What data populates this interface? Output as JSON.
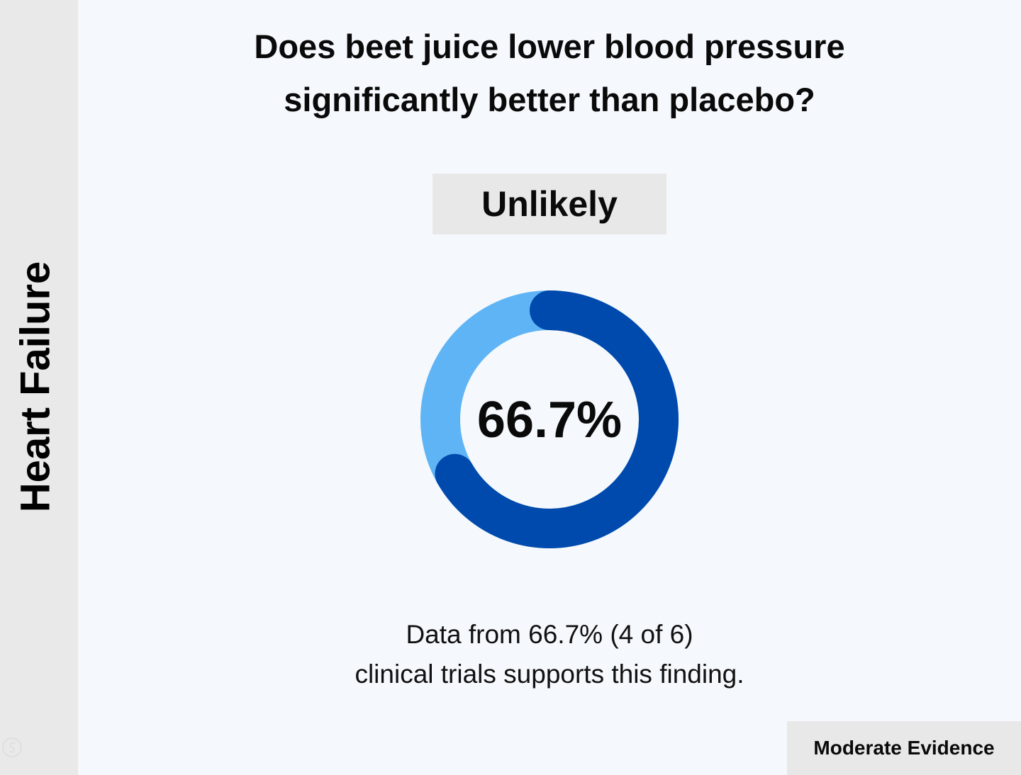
{
  "sidebar": {
    "label": "Heart Failure"
  },
  "question": {
    "line1": "Does beet juice lower blood pressure",
    "line2": "significantly better than placebo?"
  },
  "verdict": "Unlikely",
  "chart_data": {
    "type": "pie",
    "style": "donut",
    "center_label": "66.7%",
    "slices": [
      {
        "value": 66.7,
        "color": "#004aad"
      },
      {
        "value": 33.3,
        "color": "#5fb4f5"
      }
    ]
  },
  "caption": {
    "line1": "Data from 66.7% (4 of 6)",
    "line2": "clinical trials supports this finding."
  },
  "evidence_badge": "Moderate Evidence",
  "colors": {
    "primary_arc": "#004aad",
    "secondary_arc": "#5fb4f5",
    "background": "#f5f8fc",
    "panel": "#e8e8e8"
  }
}
